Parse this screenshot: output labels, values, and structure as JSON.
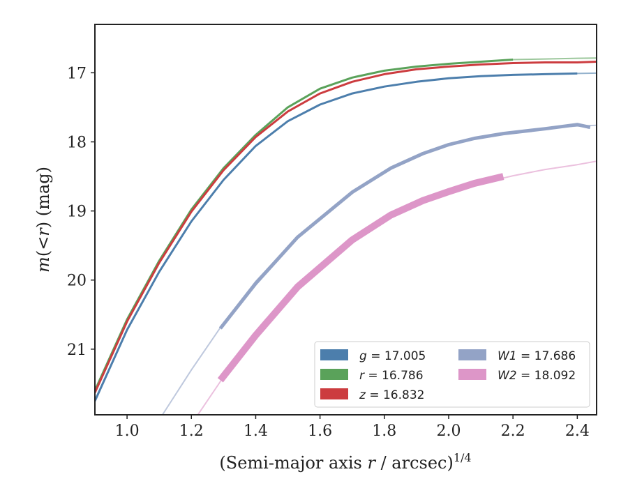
{
  "chart_data": {
    "type": "line",
    "xlabel_main": "(Semi-major axis ",
    "xlabel_var": "r",
    "xlabel_tail": " / arcsec)",
    "xlabel_exp": "1/4",
    "ylabel_var": "m",
    "ylabel_mid": "(<",
    "ylabel_var2": "r",
    "ylabel_tail": ") (mag)",
    "xlim": [
      0.9,
      2.46
    ],
    "ylim": [
      21.95,
      16.3
    ],
    "y_inverted": true,
    "x_ticks": [
      "1.0",
      "1.2",
      "1.4",
      "1.6",
      "1.8",
      "2.0",
      "2.2",
      "2.4"
    ],
    "x_tick_values": [
      1.0,
      1.2,
      1.4,
      1.6,
      1.8,
      2.0,
      2.2,
      2.4
    ],
    "y_ticks": [
      "17",
      "18",
      "19",
      "20",
      "21"
    ],
    "y_tick_values": [
      17,
      18,
      19,
      20,
      21
    ],
    "legend_location": "lower right",
    "series": [
      {
        "name": "g",
        "legend_value": "= 17.005",
        "color": "#4c7eac",
        "measured": {
          "x": [
            0.9,
            1.0,
            1.1,
            1.2,
            1.3,
            1.4,
            1.5,
            1.6,
            1.7,
            1.8,
            1.9,
            2.0,
            2.1,
            2.2,
            2.3,
            2.4
          ],
          "y": [
            21.75,
            20.72,
            19.88,
            19.15,
            18.55,
            18.06,
            17.7,
            17.46,
            17.3,
            17.2,
            17.13,
            17.08,
            17.05,
            17.03,
            17.02,
            17.01
          ]
        },
        "model": {
          "x": [
            2.2,
            2.3,
            2.4,
            2.46
          ],
          "y": [
            17.03,
            17.02,
            17.01,
            17.005
          ]
        }
      },
      {
        "name": "r",
        "legend_value": "= 16.786",
        "color": "#5aa25a",
        "measured": {
          "x": [
            0.9,
            1.0,
            1.1,
            1.2,
            1.3,
            1.4,
            1.5,
            1.6,
            1.7,
            1.8,
            1.9,
            2.0,
            2.1,
            2.2
          ],
          "y": [
            21.6,
            20.57,
            19.72,
            18.98,
            18.38,
            17.9,
            17.5,
            17.23,
            17.07,
            16.97,
            16.91,
            16.87,
            16.84,
            16.81
          ]
        },
        "model": {
          "x": [
            2.2,
            2.3,
            2.4,
            2.46
          ],
          "y": [
            16.81,
            16.8,
            16.79,
            16.786
          ]
        }
      },
      {
        "name": "z",
        "legend_value": "= 16.832",
        "color": "#cc3c3f",
        "measured": {
          "x": [
            0.9,
            1.0,
            1.1,
            1.2,
            1.3,
            1.4,
            1.5,
            1.6,
            1.7,
            1.8,
            1.9,
            2.0,
            2.1,
            2.2,
            2.3,
            2.4,
            2.46
          ],
          "y": [
            21.63,
            20.6,
            19.75,
            19.01,
            18.41,
            17.93,
            17.56,
            17.3,
            17.13,
            17.02,
            16.95,
            16.91,
            16.88,
            16.86,
            16.85,
            16.85,
            16.84
          ]
        },
        "model": {
          "x": [
            2.2,
            2.3,
            2.4,
            2.46
          ],
          "y": [
            16.86,
            16.85,
            16.85,
            16.84
          ]
        }
      },
      {
        "name": "W1",
        "legend_value": "= 17.686",
        "color": "#93a3c6",
        "measured": {
          "x": [
            1.29,
            1.4,
            1.53,
            1.7,
            1.82,
            1.92,
            2.0,
            2.08,
            2.17,
            2.3,
            2.4,
            2.44
          ],
          "y": [
            20.7,
            20.05,
            19.38,
            18.73,
            18.38,
            18.17,
            18.04,
            17.95,
            17.88,
            17.81,
            17.75,
            17.79
          ]
        },
        "model": {
          "x": [
            1.11,
            1.2,
            1.3,
            1.4,
            1.53,
            1.7,
            1.82,
            1.92,
            2.0,
            2.1,
            2.2,
            2.3,
            2.4,
            2.46
          ],
          "y": [
            21.95,
            21.3,
            20.62,
            20.02,
            19.37,
            18.73,
            18.38,
            18.17,
            18.04,
            17.94,
            17.86,
            17.8,
            17.77,
            17.76
          ]
        }
      },
      {
        "name": "W2",
        "legend_value": "= 18.092",
        "color": "#dd96c8",
        "measured": {
          "x": [
            1.29,
            1.4,
            1.53,
            1.7,
            1.82,
            1.92,
            2.0,
            2.08,
            2.17
          ],
          "y": [
            21.45,
            20.8,
            20.1,
            19.42,
            19.06,
            18.85,
            18.72,
            18.6,
            18.5
          ]
        },
        "model": {
          "x": [
            1.22,
            1.3,
            1.4,
            1.53,
            1.7,
            1.82,
            1.92,
            2.0,
            2.1,
            2.2,
            2.3,
            2.4,
            2.46
          ],
          "y": [
            21.95,
            21.4,
            20.78,
            20.08,
            19.42,
            19.06,
            18.85,
            18.72,
            18.6,
            18.49,
            18.4,
            18.33,
            18.28
          ]
        }
      }
    ]
  }
}
